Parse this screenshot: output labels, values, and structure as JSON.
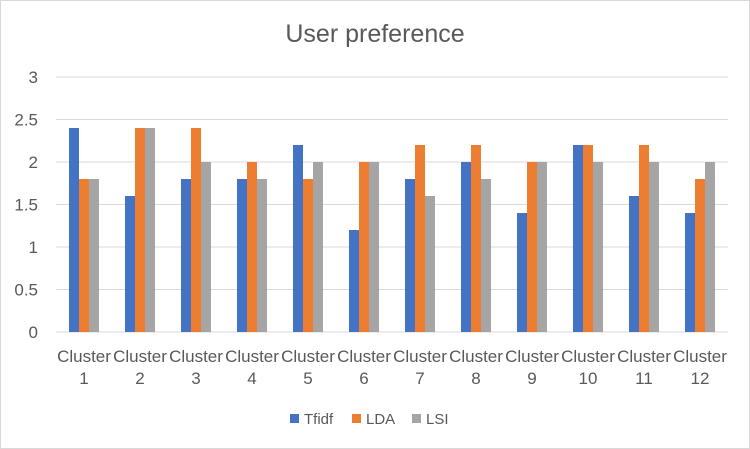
{
  "chart_data": {
    "type": "bar",
    "title": "User preference",
    "xlabel": "",
    "ylabel": "",
    "ylim": [
      0,
      3
    ],
    "yticks": [
      "0",
      "0.5",
      "1",
      "1.5",
      "2",
      "2.5",
      "3"
    ],
    "grid": true,
    "legend_position": "bottom",
    "categories": [
      [
        "Cluster",
        "1"
      ],
      [
        "Cluster",
        "2"
      ],
      [
        "Cluster",
        "3"
      ],
      [
        "Cluster",
        "4"
      ],
      [
        "Cluster",
        "5"
      ],
      [
        "Cluster",
        "6"
      ],
      [
        "Cluster",
        "7"
      ],
      [
        "Cluster",
        "8"
      ],
      [
        "Cluster",
        "9"
      ],
      [
        "Cluster",
        "10"
      ],
      [
        "Cluster",
        "11"
      ],
      [
        "Cluster",
        "12"
      ]
    ],
    "series": [
      {
        "name": "Tfidf",
        "color": "#4472c4",
        "values": [
          2.4,
          1.6,
          1.8,
          1.8,
          2.2,
          1.2,
          1.8,
          2.0,
          1.4,
          2.2,
          1.6,
          1.4
        ]
      },
      {
        "name": "LDA",
        "color": "#ed7d31",
        "values": [
          1.8,
          2.4,
          2.4,
          2.0,
          1.8,
          2.0,
          2.2,
          2.2,
          2.0,
          2.2,
          2.2,
          1.8
        ]
      },
      {
        "name": "LSI",
        "color": "#a5a5a5",
        "values": [
          1.8,
          2.4,
          2.0,
          1.8,
          2.0,
          2.0,
          1.6,
          1.8,
          2.0,
          2.0,
          2.0,
          2.0
        ]
      }
    ]
  }
}
